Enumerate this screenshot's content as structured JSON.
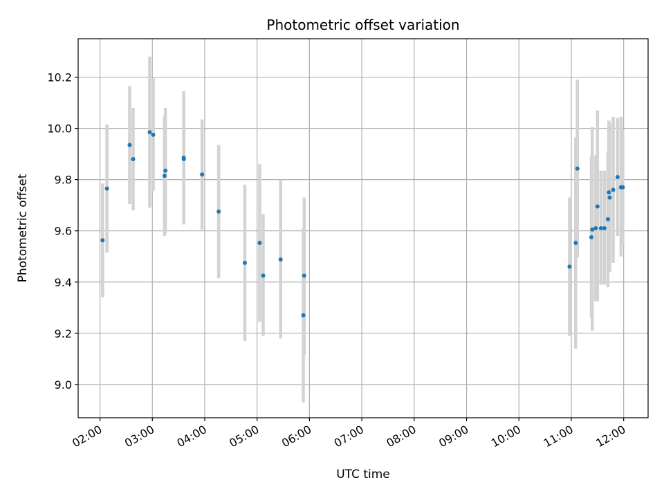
{
  "chart_data": {
    "type": "scatter",
    "title": "Photometric offset variation",
    "xlabel": "UTC time",
    "ylabel": "Photometric offset",
    "xlim": [
      "01:35",
      "12:28"
    ],
    "ylim": [
      8.87,
      10.35
    ],
    "x_ticks": [
      "02:00",
      "03:00",
      "04:00",
      "05:00",
      "06:00",
      "07:00",
      "08:00",
      "09:00",
      "10:00",
      "11:00",
      "12:00"
    ],
    "y_ticks": [
      9.0,
      9.2,
      9.4,
      9.6,
      9.8,
      10.0,
      10.2
    ],
    "y_tick_labels": [
      "9.0",
      "9.2",
      "9.4",
      "9.6",
      "9.8",
      "10.0",
      "10.2"
    ],
    "grid": true,
    "colors": {
      "point": "#1f77b4",
      "errorbar": "#d3d3d3",
      "grid": "#b0b0b0"
    },
    "points": [
      {
        "x": "02:03",
        "y": 9.563,
        "ymin": 9.34,
        "ymax": 9.785
      },
      {
        "x": "02:08",
        "y": 9.765,
        "ymin": 9.515,
        "ymax": 10.015
      },
      {
        "x": "02:34",
        "y": 9.935,
        "ymin": 9.705,
        "ymax": 10.165
      },
      {
        "x": "02:38",
        "y": 9.88,
        "ymin": 9.68,
        "ymax": 10.08
      },
      {
        "x": "02:57",
        "y": 9.985,
        "ymin": 9.69,
        "ymax": 10.28
      },
      {
        "x": "03:01",
        "y": 9.975,
        "ymin": 9.755,
        "ymax": 10.195
      },
      {
        "x": "03:14",
        "y": 9.815,
        "ymin": 9.58,
        "ymax": 10.05
      },
      {
        "x": "03:15",
        "y": 9.835,
        "ymin": 9.59,
        "ymax": 10.08
      },
      {
        "x": "03:36",
        "y": 9.88,
        "ymin": 9.63,
        "ymax": 10.13
      },
      {
        "x": "03:36",
        "y": 9.885,
        "ymin": 9.625,
        "ymax": 10.145
      },
      {
        "x": "03:57",
        "y": 9.82,
        "ymin": 9.605,
        "ymax": 10.035
      },
      {
        "x": "04:16",
        "y": 9.675,
        "ymin": 9.415,
        "ymax": 9.935
      },
      {
        "x": "04:46",
        "y": 9.475,
        "ymin": 9.17,
        "ymax": 9.78
      },
      {
        "x": "05:03",
        "y": 9.553,
        "ymin": 9.245,
        "ymax": 9.86
      },
      {
        "x": "05:07",
        "y": 9.425,
        "ymin": 9.19,
        "ymax": 9.665
      },
      {
        "x": "05:27",
        "y": 9.488,
        "ymin": 9.18,
        "ymax": 9.8
      },
      {
        "x": "05:53",
        "y": 9.27,
        "ymin": 8.93,
        "ymax": 9.61
      },
      {
        "x": "05:54",
        "y": 9.425,
        "ymin": 9.115,
        "ymax": 9.73
      },
      {
        "x": "10:58",
        "y": 9.46,
        "ymin": 9.19,
        "ymax": 9.73
      },
      {
        "x": "11:05",
        "y": 9.553,
        "ymin": 9.14,
        "ymax": 9.965
      },
      {
        "x": "11:07",
        "y": 9.843,
        "ymin": 9.495,
        "ymax": 10.19
      },
      {
        "x": "11:23",
        "y": 9.575,
        "ymin": 9.26,
        "ymax": 9.89
      },
      {
        "x": "11:24",
        "y": 9.605,
        "ymin": 9.21,
        "ymax": 10.005
      },
      {
        "x": "11:28",
        "y": 9.61,
        "ymin": 9.325,
        "ymax": 9.895
      },
      {
        "x": "11:30",
        "y": 9.695,
        "ymin": 9.325,
        "ymax": 10.07
      },
      {
        "x": "11:34",
        "y": 9.61,
        "ymin": 9.39,
        "ymax": 9.835
      },
      {
        "x": "11:38",
        "y": 9.61,
        "ymin": 9.39,
        "ymax": 9.835
      },
      {
        "x": "11:42",
        "y": 9.645,
        "ymin": 9.38,
        "ymax": 9.91
      },
      {
        "x": "11:43",
        "y": 9.75,
        "ymin": 9.47,
        "ymax": 10.03
      },
      {
        "x": "11:44",
        "y": 9.73,
        "ymin": 9.44,
        "ymax": 10.02
      },
      {
        "x": "11:48",
        "y": 9.76,
        "ymin": 9.475,
        "ymax": 10.045
      },
      {
        "x": "11:53",
        "y": 9.81,
        "ymin": 9.58,
        "ymax": 10.04
      },
      {
        "x": "11:57",
        "y": 9.77,
        "ymin": 9.5,
        "ymax": 10.045
      },
      {
        "x": "11:59",
        "y": 9.77,
        "ymin": 9.54,
        "ymax": 9.995
      }
    ]
  }
}
